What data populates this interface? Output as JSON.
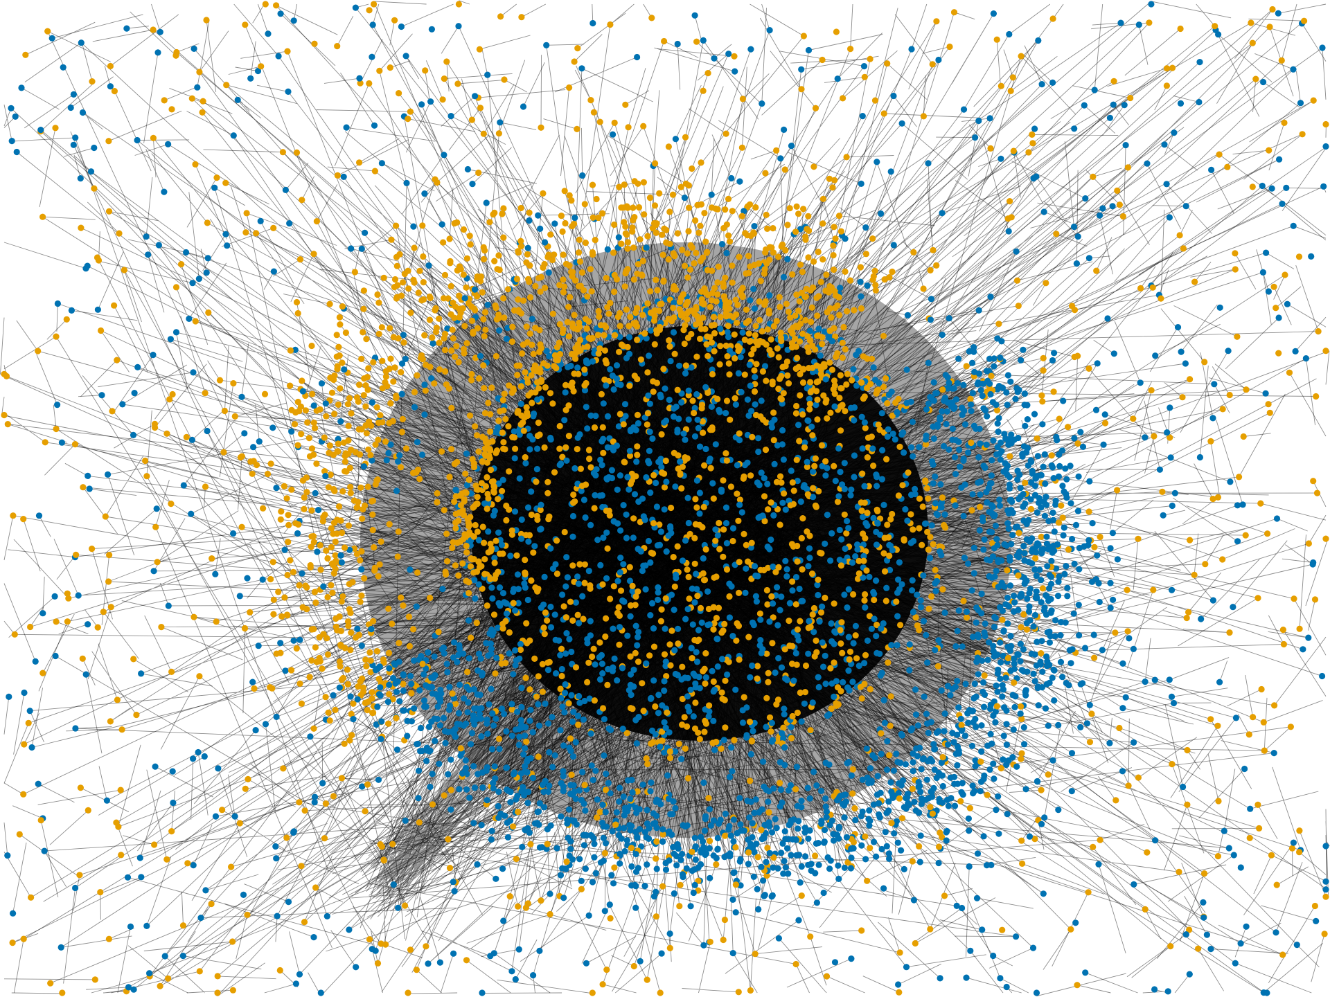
{
  "figure": {
    "kind": "force-directed network graph",
    "background_color": "#ffffff",
    "edge_color": "#000000",
    "node_groups": [
      {
        "group": "a",
        "color": "#E69F00"
      },
      {
        "group": "b",
        "color": "#0072B2"
      }
    ],
    "labels_visible": false,
    "legend_visible": false
  }
}
